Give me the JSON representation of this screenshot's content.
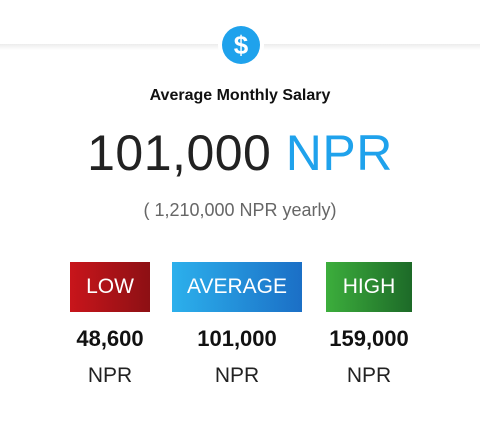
{
  "header": {
    "icon": "$",
    "title": "Average Monthly Salary"
  },
  "main": {
    "amount": "101,000",
    "currency": "NPR",
    "yearly": "( 1,210,000 NPR yearly)"
  },
  "ranges": [
    {
      "label": "LOW",
      "value": "48,600",
      "unit": "NPR"
    },
    {
      "label": "AVERAGE",
      "value": "101,000",
      "unit": "NPR"
    },
    {
      "label": "HIGH",
      "value": "159,000",
      "unit": "NPR"
    }
  ]
}
